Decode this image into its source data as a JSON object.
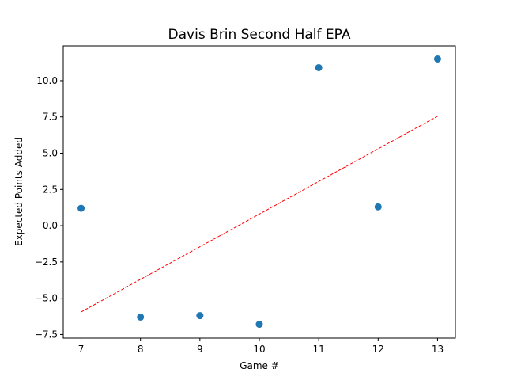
{
  "chart_data": {
    "type": "scatter",
    "title": "Davis Brin Second Half EPA",
    "xlabel": "Game #",
    "ylabel": "Expected Points Added",
    "xlim": [
      6.7,
      13.3
    ],
    "ylim": [
      -7.75,
      12.4
    ],
    "xticks": [
      7,
      8,
      9,
      10,
      11,
      12,
      13
    ],
    "xtick_labels": [
      "7",
      "8",
      "9",
      "10",
      "11",
      "12",
      "13"
    ],
    "yticks": [
      -7.5,
      -5.0,
      -2.5,
      0.0,
      2.5,
      5.0,
      7.5,
      10.0
    ],
    "ytick_labels": [
      "−7.5",
      "−5.0",
      "−2.5",
      "0.0",
      "2.5",
      "5.0",
      "7.5",
      "10.0"
    ],
    "grid": false,
    "points": [
      {
        "x": 7,
        "y": 1.2
      },
      {
        "x": 8,
        "y": -6.3
      },
      {
        "x": 9,
        "y": -6.2
      },
      {
        "x": 10,
        "y": -6.8
      },
      {
        "x": 11,
        "y": 10.9
      },
      {
        "x": 12,
        "y": 1.3
      },
      {
        "x": 13,
        "y": 11.5
      }
    ],
    "trendline": {
      "x": [
        7,
        13
      ],
      "y": [
        -5.95,
        7.55
      ],
      "style": "dashed"
    },
    "colors": {
      "points": "#1f77b4",
      "trendline": "#ff0000"
    }
  }
}
